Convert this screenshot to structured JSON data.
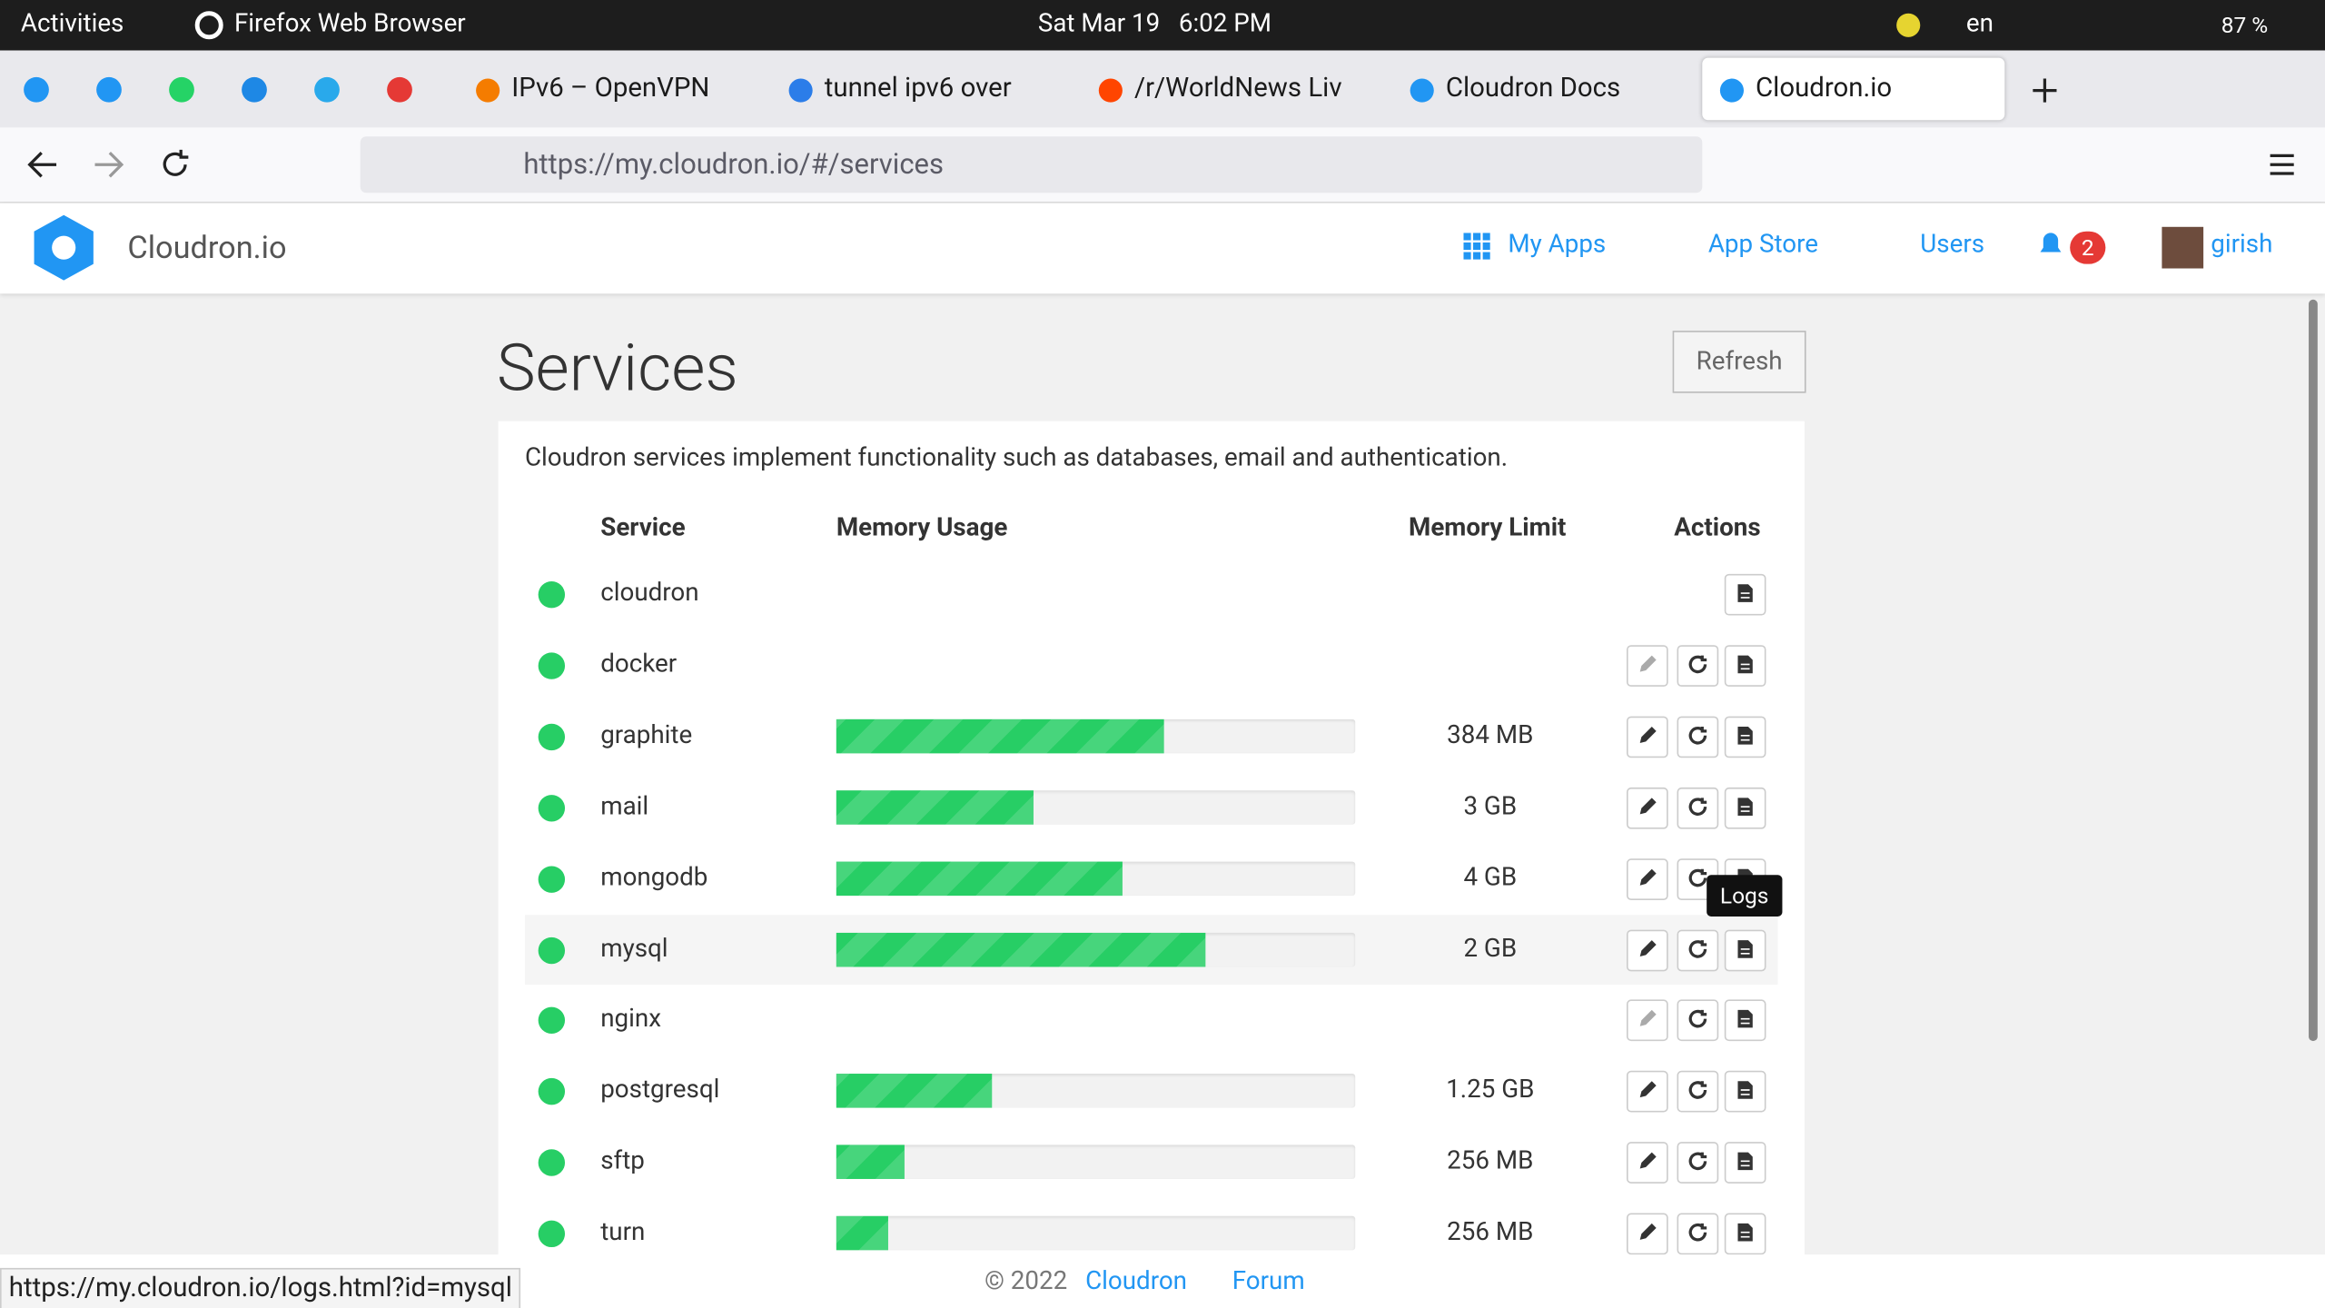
{
  "top_bar": {
    "activities": "Activities",
    "app": "Firefox Web Browser",
    "clock": "Sat Mar 19   6:02 PM",
    "language": "en",
    "battery": "87 %"
  },
  "tabs": [
    "IPv6 – OpenVPN",
    "tunnel ipv6 over",
    "/r/WorldNews Liv",
    "Cloudron Docs",
    "Cloudron.io"
  ],
  "url": "https://my.cloudron.io/#/services",
  "nav": {
    "brand": "Cloudron.io",
    "links": [
      "My Apps",
      "App Store",
      "Users"
    ],
    "notifications": 2,
    "user": "girish"
  },
  "page": {
    "title": "Services",
    "refresh": "Refresh",
    "description": "Cloudron services implement functionality such as databases, email and authentication.",
    "columns": [
      "Service",
      "Memory Usage",
      "Memory Limit",
      "Actions"
    ],
    "tooltip": "Logs"
  },
  "services": [
    {
      "name": "cloudron",
      "memory_usage": null,
      "memory_limit": null
    },
    {
      "name": "docker",
      "memory_usage": null,
      "memory_limit": null
    },
    {
      "name": "graphite",
      "memory_usage": 63,
      "memory_limit": "384 MB"
    },
    {
      "name": "mail",
      "memory_usage": 38,
      "memory_limit": "3 GB"
    },
    {
      "name": "mongodb",
      "memory_usage": 55,
      "memory_limit": "4 GB"
    },
    {
      "name": "mysql",
      "memory_usage": 71,
      "memory_limit": "2 GB"
    },
    {
      "name": "nginx",
      "memory_usage": null,
      "memory_limit": null
    },
    {
      "name": "postgresql",
      "memory_usage": 30,
      "memory_limit": "1.25 GB"
    },
    {
      "name": "sftp",
      "memory_usage": 13,
      "memory_limit": "256 MB"
    },
    {
      "name": "turn",
      "memory_usage": 10,
      "memory_limit": "256 MB"
    }
  ],
  "footer": {
    "copyright": "© 2022",
    "links": [
      "Cloudron",
      "Forum"
    ]
  },
  "status_url": "https://my.cloudron.io/logs.html?id=mysql"
}
